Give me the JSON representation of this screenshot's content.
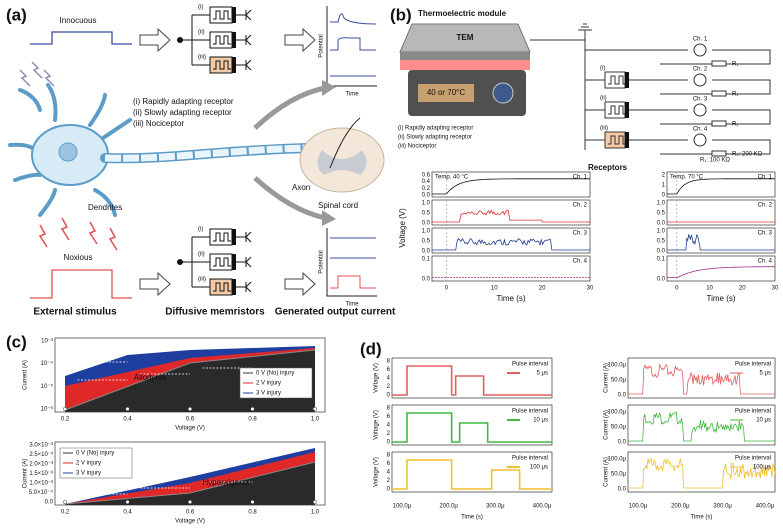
{
  "panel_a": {
    "label": "(a)",
    "innocuous": "Innocuous",
    "noxious": "Noxious",
    "roman_top": [
      "(i)",
      "(ii)",
      "(iii)"
    ],
    "roman_bottom": [
      "(i)",
      "(ii)",
      "(iii)"
    ],
    "receptors": [
      "(i)   Rapidly adapting receptor",
      "(ii)  Slowly adapting receptor",
      "(iii) Nociceptor"
    ],
    "dendrites": "Dendrites",
    "axon": "Axon",
    "spinal_cord": "Spinal cord",
    "potential": [
      "Potential",
      "Potential"
    ],
    "time": [
      "Time",
      "Time"
    ],
    "captions": [
      "External stimulus",
      "Diffusive memristors",
      "Generated output current"
    ]
  },
  "panel_b": {
    "label": "(b)",
    "module": "Thermoelectric module",
    "tem": "TEM",
    "temperature": "40 or 70°C",
    "receptors": [
      "(i)   Rapidly adapting receptor",
      "(ii)  Slowly adapting receptor",
      "(iii) Nociceptor"
    ],
    "roman": [
      "(i)",
      "(ii)",
      "(iii)"
    ],
    "receptors_title": "Receptors",
    "circuit_channels": [
      "Ch. 1",
      "Ch. 2",
      "Ch. 3",
      "Ch. 4"
    ],
    "resistors": [
      "R₁",
      "R₁",
      "R₁",
      "R₂: 200 KΩ",
      "R₁: 100 KΩ"
    ],
    "ylabel": "Voltage (V)",
    "plots": [
      {
        "title": "Temp. 40 °C",
        "channels": [
          "Ch. 1",
          "Ch. 2",
          "Ch. 3",
          "Ch. 4"
        ],
        "yticks": [
          [
            "0.0",
            "0.2",
            "0.4",
            "0.6"
          ],
          [
            "0.0",
            "0.5",
            "1.0"
          ],
          [
            "0.0",
            "0.5",
            "1.0"
          ],
          [
            "0.0",
            "0.1"
          ]
        ],
        "xticks": [
          "0",
          "10",
          "20",
          "30"
        ],
        "xlabel": "Time (s)"
      },
      {
        "title": "Temp. 70 °C",
        "channels": [
          "Ch. 1",
          "Ch. 2",
          "Ch. 3",
          "Ch. 4"
        ],
        "yticks": [
          [
            "0",
            "1",
            "2"
          ],
          [
            "0.0",
            "0.5",
            "1.0"
          ],
          [
            "0.0",
            "0.5",
            "1.0"
          ],
          [
            "0.0",
            "0.1"
          ]
        ],
        "xticks": [
          "0",
          "10",
          "20",
          "30"
        ],
        "xlabel": "Time (s)"
      }
    ]
  },
  "panel_c": {
    "label": "(c)",
    "top": {
      "yticks": [
        "10⁻⁶",
        "10⁻⁵",
        "10⁻⁴",
        "10⁻³"
      ],
      "ylabel": "Current (A)",
      "xticks": [
        "0.2",
        "0.4",
        "0.6",
        "0.8",
        "1.0"
      ],
      "xlabel": "Voltage (V)",
      "annotation": "Allodynia",
      "legend": [
        "0 V (No) injury",
        "2 V injury",
        "3 V injury"
      ]
    },
    "bottom": {
      "yticks": [
        "0.0",
        "5.0×10⁻⁴",
        "1.0×10⁻³",
        "1.5×10⁻³",
        "2.0×10⁻³",
        "2.5×10⁻³",
        "3.0×10⁻³"
      ],
      "ylabel": "Current (A)",
      "xticks": [
        "0.2",
        "0.4",
        "0.6",
        "0.8",
        "1.0"
      ],
      "xlabel": "Voltage (V)",
      "annotation": "Hyperalgesia",
      "legend": [
        "0 V (No) injury",
        "2 V injury",
        "3 V injury"
      ]
    }
  },
  "panel_d": {
    "label": "(d)",
    "legend_title": [
      "Pulse interval",
      "Pulse interval",
      "Pulse interval",
      "Pulse interval",
      "Pulse interval",
      "Pulse interval"
    ],
    "intervals": [
      "5 μs",
      "10 μs",
      "100 μs"
    ],
    "intervals_right": [
      "5 μs",
      "10 μs",
      "100 μs"
    ],
    "voltage_label": [
      "Voltage (V)",
      "Voltage (V)",
      "Voltage (V)"
    ],
    "current_label": [
      "Current (A)",
      "Current (A)",
      "Current (A)"
    ],
    "voltage_ticks": [
      [
        "0",
        "2",
        "4",
        "6",
        "8"
      ],
      [
        "0",
        "2",
        "4",
        "6",
        "8"
      ],
      [
        "0",
        "2",
        "4",
        "6",
        "8"
      ]
    ],
    "current_ticks": [
      [
        "0.0",
        "50.0μ",
        "100.0μ"
      ],
      [
        "0.0",
        "50.0μ",
        "100.0μ"
      ],
      [
        "0.0",
        "50.0μ",
        "100.0μ"
      ]
    ],
    "xticks_left": [
      "100.0μ",
      "200.0μ",
      "300.0μ",
      "400.0μ"
    ],
    "xticks_right": [
      "100.0μ",
      "200.0μ",
      "300.0μ",
      "400.0μ"
    ],
    "xlabel": [
      "Time (s)",
      "Time (s)"
    ]
  }
}
